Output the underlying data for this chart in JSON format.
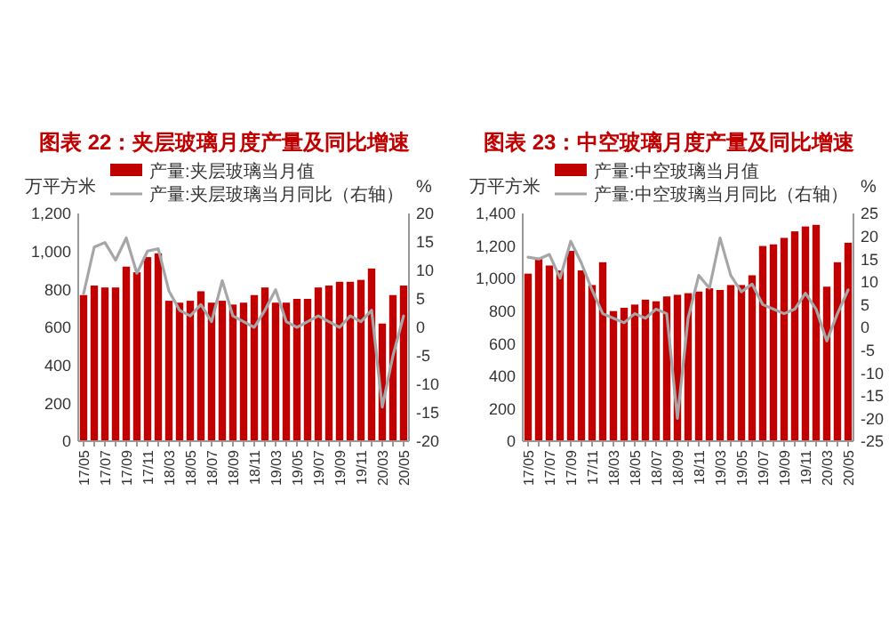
{
  "chart_data": [
    {
      "type": "bar",
      "title": "图表 22：夹层玻璃月度产量及同比增速",
      "ylabel": "万平方米",
      "y2label": "%",
      "legend": "top",
      "categories": [
        "17/05",
        null,
        "17/07",
        null,
        "17/09",
        null,
        "17/11",
        null,
        "18/03",
        null,
        "18/05",
        null,
        "18/07",
        null,
        "18/09",
        null,
        "18/11",
        null,
        "19/03",
        null,
        "19/05",
        null,
        "19/07",
        null,
        "19/09",
        null,
        "19/11",
        null,
        "20/03",
        null,
        "20/05"
      ],
      "ylim": [
        0,
        1200
      ],
      "yticks": [
        0,
        200,
        400,
        600,
        800,
        {
          "value": 1000,
          "label": "1,000"
        },
        {
          "value": 1200,
          "label": "1,200"
        }
      ],
      "y2lim": [
        -20,
        20
      ],
      "y2ticks": [
        -20,
        -15,
        -10,
        -5,
        0,
        5,
        10,
        15,
        20
      ],
      "series": [
        {
          "name": "产量:夹层玻璃当月值",
          "color": "#c00000",
          "values": [
            770,
            820,
            810,
            810,
            920,
            890,
            970,
            990,
            740,
            730,
            740,
            790,
            730,
            740,
            720,
            730,
            770,
            810,
            730,
            730,
            750,
            750,
            810,
            820,
            840,
            840,
            850,
            910,
            620,
            770,
            820
          ]
        },
        {
          "type": "line",
          "axis": "y2",
          "name": "产量:夹层玻璃当月同比（右轴）",
          "color": "#a6a6a6",
          "values": [
            5.9,
            14.1,
            14.9,
            11.8,
            15.7,
            9.5,
            13.4,
            13.8,
            6.4,
            3,
            2,
            4,
            1,
            8.2,
            2,
            1,
            0,
            3,
            6.6,
            1,
            0,
            1,
            2,
            1,
            0,
            2,
            1,
            3,
            -14,
            -5,
            2
          ]
        }
      ]
    },
    {
      "type": "bar",
      "title": "图表 23：中空玻璃月度产量及同比增速",
      "ylabel": "万平方米",
      "y2label": "%",
      "legend": "top",
      "categories": [
        "17/05",
        null,
        "17/07",
        null,
        "17/09",
        null,
        "17/11",
        null,
        "18/03",
        null,
        "18/05",
        null,
        "18/07",
        null,
        "18/09",
        null,
        "18/11",
        null,
        "19/03",
        null,
        "19/05",
        null,
        "19/07",
        null,
        "19/09",
        null,
        "19/11",
        null,
        "20/03",
        null,
        "20/05"
      ],
      "ylim": [
        0,
        1400
      ],
      "yticks": [
        0,
        200,
        400,
        600,
        800,
        {
          "value": 1000,
          "label": "1,000"
        },
        {
          "value": 1200,
          "label": "1,200"
        },
        {
          "value": 1400,
          "label": "1,400"
        }
      ],
      "y2lim": [
        -25,
        25
      ],
      "y2ticks": [
        -25,
        -20,
        -15,
        -10,
        -5,
        0,
        5,
        10,
        15,
        20,
        25
      ],
      "series": [
        {
          "name": "产量:中空玻璃当月值",
          "color": "#c00000",
          "values": [
            1030,
            1120,
            1080,
            1050,
            1170,
            1050,
            960,
            1100,
            800,
            820,
            840,
            870,
            860,
            890,
            900,
            910,
            920,
            940,
            930,
            960,
            960,
            1020,
            1200,
            1210,
            1250,
            1290,
            1320,
            1330,
            950,
            1100,
            1220
          ]
        },
        {
          "type": "line",
          "axis": "y2",
          "name": "产量:中空玻璃当月同比（右轴）",
          "color": "#a6a6a6",
          "values": [
            15.4,
            15,
            16,
            10.8,
            18.9,
            14.1,
            8.2,
            3,
            2,
            1,
            3,
            2,
            4,
            3,
            -20,
            2,
            11.4,
            8.6,
            19.6,
            11.4,
            7.8,
            9.5,
            5,
            4,
            3,
            4,
            7.5,
            4,
            -3,
            3,
            8.2
          ]
        }
      ]
    }
  ]
}
